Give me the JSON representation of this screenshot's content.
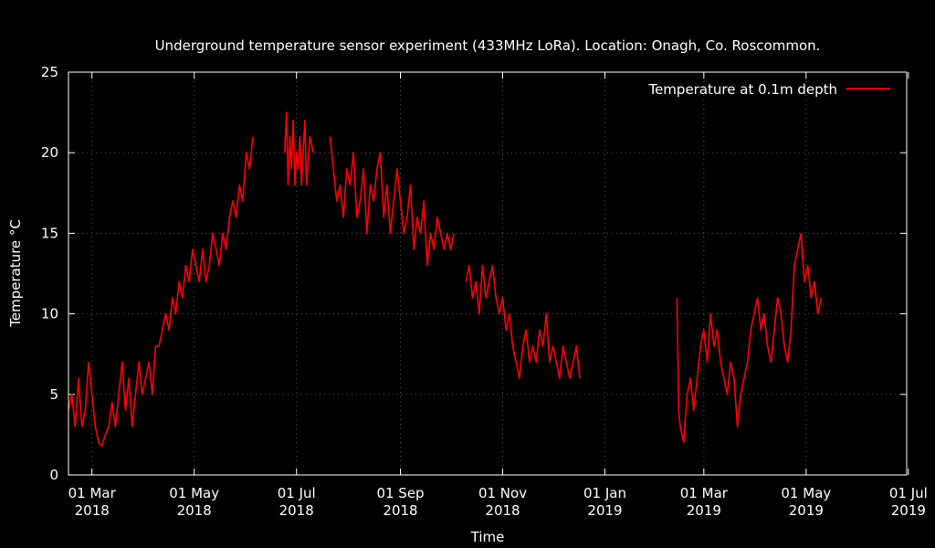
{
  "chart_data": {
    "type": "line",
    "title": "Underground temperature sensor experiment (433MHz LoRa). Location: Onagh, Co. Roscommon.",
    "xlabel": "Time",
    "ylabel": "Temperature °C",
    "ylim": [
      0,
      25
    ],
    "yticks": [
      0,
      5,
      10,
      15,
      20,
      25
    ],
    "xlim_days": [
      -14,
      486
    ],
    "xtick_origin": "2018-03-01",
    "xticks": [
      {
        "day": 0,
        "line1": "01 Mar",
        "line2": "2018"
      },
      {
        "day": 61,
        "line1": "01 May",
        "line2": "2018"
      },
      {
        "day": 122,
        "line1": "01 Jul",
        "line2": "2018"
      },
      {
        "day": 184,
        "line1": "01 Sep",
        "line2": "2018"
      },
      {
        "day": 245,
        "line1": "01 Nov",
        "line2": "2018"
      },
      {
        "day": 306,
        "line1": "01 Jan",
        "line2": "2019"
      },
      {
        "day": 365,
        "line1": "01 Mar",
        "line2": "2019"
      },
      {
        "day": 426,
        "line1": "01 May",
        "line2": "2019"
      },
      {
        "day": 487,
        "line1": "01 Jul",
        "line2": "2019"
      }
    ],
    "grid": true,
    "legend_position": "top-right",
    "series": [
      {
        "name": "Temperature at 0.1m depth",
        "color": "#ff0000",
        "segments": [
          {
            "x": [
              -14,
              -12,
              -10,
              -8,
              -6,
              -4,
              -2,
              0,
              2,
              4,
              6,
              8,
              10,
              12,
              14,
              16,
              18,
              20,
              22,
              24,
              26,
              28,
              30,
              32,
              34,
              36,
              38,
              40,
              42,
              44,
              46,
              48,
              50,
              52,
              54,
              56,
              58,
              60,
              62,
              64,
              66,
              68,
              70,
              72,
              74,
              76,
              78,
              80,
              82,
              84,
              86,
              88,
              90,
              92,
              94,
              96
            ],
            "y": [
              4,
              5,
              3,
              6,
              3,
              4,
              7,
              5,
              3,
              2,
              1.8,
              2.5,
              3,
              4.5,
              3,
              5,
              7,
              4,
              6,
              3,
              5,
              7,
              5,
              6,
              7,
              5,
              8,
              8,
              9,
              10,
              9,
              11,
              10,
              12,
              11,
              13,
              12,
              14,
              13,
              12,
              14,
              12,
              13,
              15,
              14,
              13,
              15,
              14,
              16,
              17,
              16,
              18,
              17,
              20,
              19,
              21
            ]
          },
          {
            "x": [
              115,
              116,
              117,
              118,
              119,
              120,
              121,
              122,
              123,
              124,
              125,
              126,
              127,
              128,
              130,
              132
            ],
            "y": [
              20,
              22.5,
              18,
              21,
              19,
              22,
              18,
              20,
              19,
              21,
              18,
              20,
              22,
              18,
              21,
              20
            ]
          },
          {
            "x": [
              142,
              144,
              146,
              148,
              150,
              152,
              154,
              156,
              158,
              160,
              162,
              164,
              166,
              168,
              170,
              172,
              174,
              176,
              178,
              180,
              182,
              184,
              186,
              188,
              190,
              192,
              194,
              196,
              198,
              200,
              202,
              204,
              206,
              208,
              210,
              212,
              214,
              216
            ],
            "y": [
              21,
              19,
              17,
              18,
              16,
              19,
              18,
              20,
              16,
              17,
              19,
              15,
              18,
              17,
              19,
              20,
              16,
              18,
              15,
              17,
              19,
              17,
              15,
              16,
              18,
              14,
              16,
              15,
              17,
              13,
              15,
              14,
              16,
              15,
              14,
              15,
              14,
              15
            ]
          },
          {
            "x": [
              223,
              225,
              227,
              229,
              231,
              233,
              235,
              237,
              239,
              241,
              243,
              245,
              247,
              249,
              251,
              253,
              255,
              257,
              259,
              261,
              263,
              265,
              267,
              269,
              271,
              273,
              275,
              277,
              279,
              281,
              283,
              285,
              287,
              289,
              291
            ],
            "y": [
              12,
              13,
              11,
              12,
              10,
              13,
              11,
              12,
              13,
              11,
              10,
              11,
              9,
              10,
              8,
              7,
              6,
              8,
              9,
              7,
              8,
              7,
              9,
              8,
              10,
              7,
              8,
              7,
              6,
              8,
              7,
              6,
              7,
              8,
              6
            ]
          },
          {
            "x": [
              349,
              350,
              351,
              353,
              355,
              357,
              359,
              361,
              363,
              365,
              367,
              369,
              371,
              373,
              375,
              377,
              379,
              381,
              383,
              385,
              387,
              389,
              391,
              393,
              395,
              397,
              399,
              401,
              403,
              405,
              407,
              409,
              411,
              413,
              415,
              417,
              419,
              421,
              423,
              425,
              427,
              429,
              431,
              433,
              435
            ],
            "y": [
              11,
              4,
              3,
              2,
              5,
              6,
              4,
              6,
              8,
              9,
              7,
              10,
              8,
              9,
              7,
              6,
              5,
              7,
              6,
              3,
              5,
              6,
              7,
              9,
              10,
              11,
              9,
              10,
              8,
              7,
              9,
              11,
              10,
              8,
              7,
              9,
              13,
              14,
              15,
              12,
              13,
              11,
              12,
              10,
              11
            ]
          }
        ]
      }
    ]
  }
}
